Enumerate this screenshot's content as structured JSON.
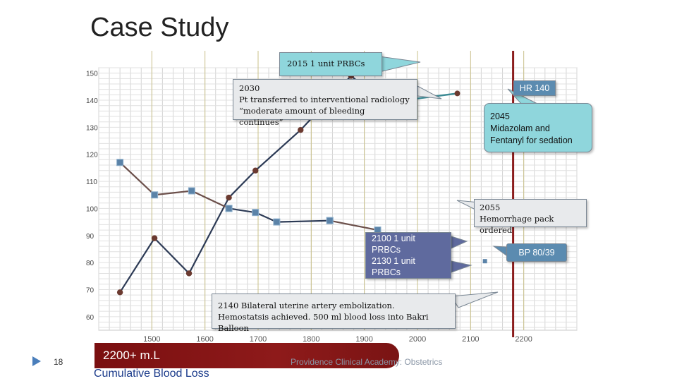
{
  "slide": {
    "title": "Case Study",
    "page_number": "18",
    "footer_text": "Providence Clinical Academy: Obstetrics",
    "cumulative_value": "2200+ m.L",
    "cumulative_label": "Cumulative Blood Loss"
  },
  "chart_data": {
    "type": "line",
    "title": "",
    "xlabel": "",
    "ylabel": "",
    "xlim": [
      1400,
      2300
    ],
    "ylim": [
      55,
      152
    ],
    "y_ticks": [
      150,
      140,
      130,
      120,
      110,
      100,
      90,
      80,
      70,
      60
    ],
    "x_ticks": [
      {
        "value": 1500,
        "label": "1500"
      },
      {
        "value": 1600,
        "label": "1600"
      },
      {
        "value": 1700,
        "label": "1700"
      },
      {
        "value": 1800,
        "label": "1800"
      },
      {
        "value": 1900,
        "label": "1900"
      },
      {
        "value": 2000,
        "label": "2000"
      },
      {
        "value": 2100,
        "label": "2100"
      },
      {
        "value": 2200,
        "label": "2200"
      }
    ],
    "grid": true,
    "marker_line": {
      "x": 2180,
      "color": "#8b1c1c"
    },
    "series": [
      {
        "color": "#2c3a55",
        "marker_color": "#6b3a30",
        "marker": "circle",
        "points": [
          {
            "x": 1440,
            "y": 69
          },
          {
            "x": 1505,
            "y": 89
          },
          {
            "x": 1570,
            "y": 76
          },
          {
            "x": 1645,
            "y": 104
          },
          {
            "x": 1695,
            "y": 114
          },
          {
            "x": 1780,
            "y": 129
          },
          {
            "x": 1875,
            "y": 149
          },
          {
            "x": 1935,
            "y": 139
          }
        ]
      },
      {
        "color": "#6b4f4a",
        "marker_color": "#5b83a8",
        "marker": "square",
        "points": [
          {
            "x": 1440,
            "y": 117
          },
          {
            "x": 1505,
            "y": 105
          },
          {
            "x": 1575,
            "y": 106.5
          },
          {
            "x": 1645,
            "y": 100
          }
        ]
      },
      {
        "color": "#2c3a55",
        "marker_color": "#5b83a8",
        "marker": "square",
        "points": [
          {
            "x": 1645,
            "y": 100
          },
          {
            "x": 1695,
            "y": 98.5
          },
          {
            "x": 1735,
            "y": 95
          },
          {
            "x": 1835,
            "y": 95.5
          }
        ]
      },
      {
        "color": "#6b4f4a",
        "marker_color": "#5b83a8",
        "marker": "square",
        "points": [
          {
            "x": 1835,
            "y": 95.5
          },
          {
            "x": 1925,
            "y": 92
          }
        ]
      }
    ],
    "hr_segment": {
      "from": {
        "x": 1935,
        "y": 139
      },
      "to": {
        "x": 2075,
        "y": 142.5
      },
      "color": "#3c8a94"
    },
    "annotations": [
      {
        "id": "a2015",
        "text": "2015  1 unit PRBCs",
        "style": "teal"
      },
      {
        "id": "a2030",
        "text": "2030\nPt transferred to interventional radiology\n“moderate amount of bleeding continues”",
        "style": "gray"
      },
      {
        "id": "ahr",
        "text": "HR 140",
        "style": "blue"
      },
      {
        "id": "a2045",
        "text": "2045\nMidazolam  and\nFentanyl for  sedation",
        "style": "teal"
      },
      {
        "id": "a2055",
        "text": "2055\nHemorrhage pack ordered",
        "style": "gray"
      },
      {
        "id": "a2100",
        "text": "2100  1 unit\nPRBCs\n2130   1 unit\nPRBCs",
        "style": "purple"
      },
      {
        "id": "abp",
        "text": "BP 80/39",
        "style": "blue"
      },
      {
        "id": "a2140",
        "text": "2140  Bilateral uterine artery embolization.\nHemostatsis achieved. 500 ml blood loss into Bakri Balloon",
        "style": "gray"
      }
    ]
  }
}
